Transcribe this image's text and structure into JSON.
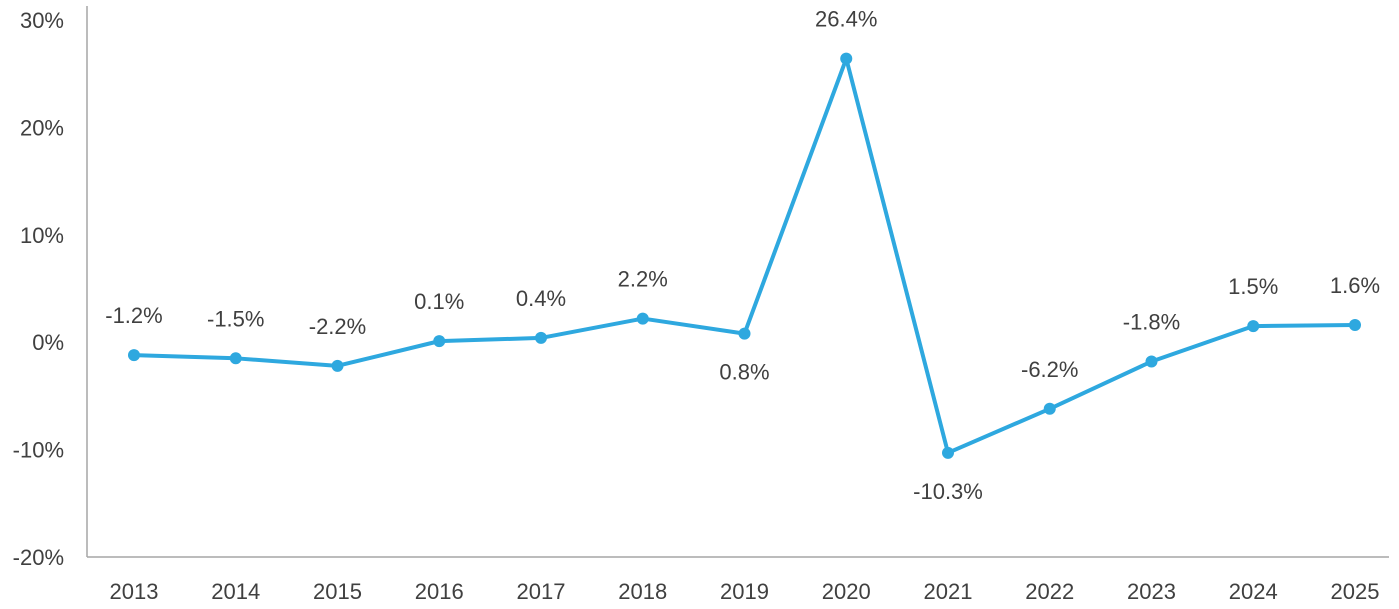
{
  "chart_data": {
    "type": "line",
    "title": "",
    "xlabel": "",
    "ylabel": "",
    "categories": [
      "2013",
      "2014",
      "2015",
      "2016",
      "2017",
      "2018",
      "2019",
      "2020",
      "2021",
      "2022",
      "2023",
      "2024",
      "2025"
    ],
    "series": [
      {
        "values": [
          -1.2,
          -1.5,
          -2.2,
          0.1,
          0.4,
          2.2,
          0.8,
          26.4,
          -10.3,
          -6.2,
          -1.8,
          1.5,
          1.6
        ],
        "labels": [
          "-1.2%",
          "-1.5%",
          "-2.2%",
          "0.1%",
          "0.4%",
          "2.2%",
          "0.8%",
          "26.4%",
          "-10.3%",
          "-6.2%",
          "-1.8%",
          "1.5%",
          "1.6%"
        ],
        "color": "#2ea8df"
      }
    ],
    "ylim": [
      -20,
      30
    ],
    "yticks": [
      {
        "value": 30,
        "label": "30%"
      },
      {
        "value": 20,
        "label": "20%"
      },
      {
        "value": 10,
        "label": "10%"
      },
      {
        "value": 0,
        "label": "0%"
      },
      {
        "value": -10,
        "label": "-10%"
      },
      {
        "value": -20,
        "label": "-20%"
      }
    ],
    "grid": false,
    "legend": "none",
    "colors": {
      "line": "#2ea8df",
      "axis": "#a6a6a6",
      "text": "#404040"
    }
  }
}
